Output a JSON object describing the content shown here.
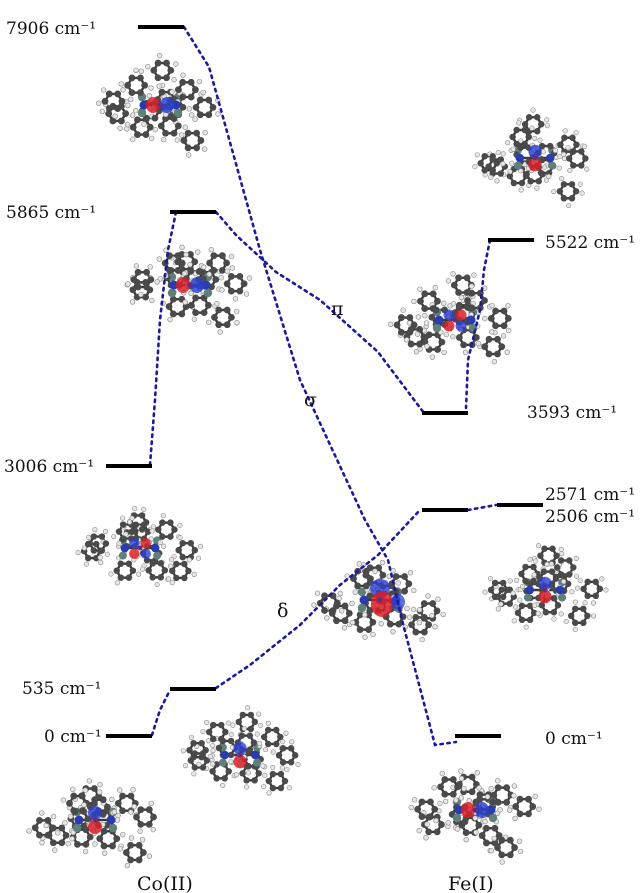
{
  "colors": {
    "level": "#000000",
    "connector": "#1b1b9a",
    "orbital_red": "#d8202a",
    "orbital_blue": "#2b3fd0",
    "carbon": "#4a4a4a",
    "hydrogen": "#e6e6e6",
    "silicon": "#5f7f7a",
    "nitrogen": "#2a3ab0"
  },
  "columns": {
    "left": "Co(II)",
    "right": "Fe(I)"
  },
  "left_levels": [
    {
      "id": "co-7906",
      "energy": "7906 cm⁻¹"
    },
    {
      "id": "co-5865",
      "energy": "5865 cm⁻¹"
    },
    {
      "id": "co-3006",
      "energy": "3006 cm⁻¹"
    },
    {
      "id": "co-535",
      "energy": "535 cm⁻¹"
    },
    {
      "id": "co-0",
      "energy": "0 cm⁻¹"
    }
  ],
  "right_levels": [
    {
      "id": "fe-5522",
      "energy": "5522 cm⁻¹"
    },
    {
      "id": "fe-3593",
      "energy": "3593 cm⁻¹"
    },
    {
      "id": "fe-2571",
      "energy": "2571 cm⁻¹"
    },
    {
      "id": "fe-2506",
      "energy": "2506 cm⁻¹"
    },
    {
      "id": "fe-0",
      "energy": "0 cm⁻¹"
    }
  ],
  "interaction_labels": {
    "pi": "π",
    "sigma": "σ",
    "delta": "δ"
  }
}
